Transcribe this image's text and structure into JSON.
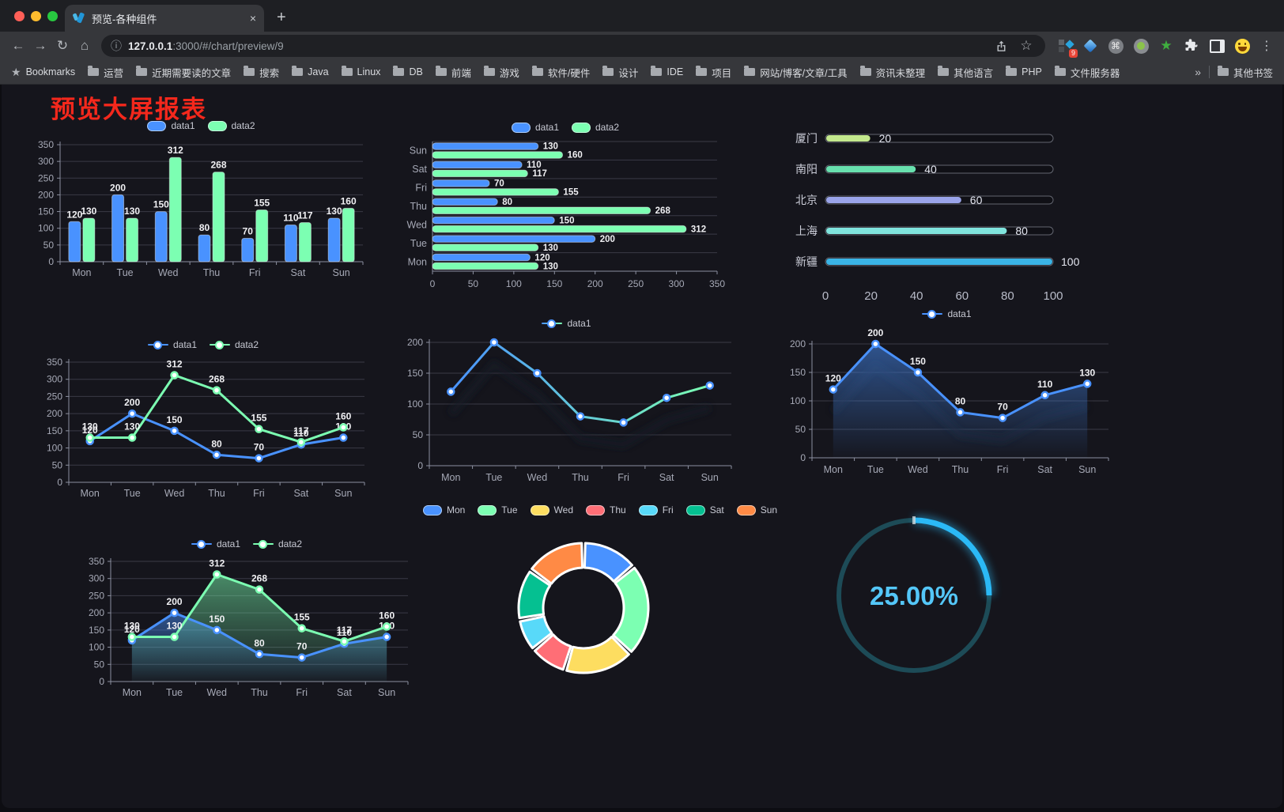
{
  "browser": {
    "tab_title": "预览-各种组件",
    "url_host": "127.0.0.1",
    "url_rest": ":3000/#/chart/preview/9",
    "bookmarks_label": "Bookmarks",
    "bookmarks": [
      "运营",
      "近期需要读的文章",
      "搜索",
      "Java",
      "Linux",
      "DB",
      "前端",
      "游戏",
      "软件/硬件",
      "设计",
      "IDE",
      "项目",
      "网站/博客/文章/工具",
      "资讯未整理",
      "其他语言",
      "PHP",
      "文件服务器"
    ],
    "overflow_glyph": "»",
    "other_bookmarks": "其他书签",
    "extension_badge": "9"
  },
  "icons": {
    "back": "←",
    "forward": "→",
    "reload": "↻",
    "home": "⌂",
    "info": "ⓘ",
    "star": "☆",
    "bookmarks_star": "★",
    "close": "×",
    "new_tab": "+",
    "cmd": "⌘",
    "green_star": "★",
    "menu": "⋮"
  },
  "page": {
    "title": "预览大屏报表",
    "title_color": "#f4281c"
  },
  "palette": {
    "blue": "#4992ff",
    "green": "#7cffb2",
    "yellow": "#fddd60",
    "red": "#ff6e76",
    "cyan": "#58d9f9",
    "teal": "#05c091",
    "orange": "#ff8a45",
    "grid": "#3a3a46",
    "axis": "#8c90a0",
    "tick_text": "#a6a9b6",
    "value_text": "#f0f0f3"
  },
  "chart_data": [
    {
      "id": "bar-grouped",
      "type": "bar",
      "categories": [
        "Mon",
        "Tue",
        "Wed",
        "Thu",
        "Fri",
        "Sat",
        "Sun"
      ],
      "series": [
        {
          "name": "data1",
          "color": "#4992ff",
          "values": [
            120,
            200,
            150,
            80,
            70,
            110,
            130
          ]
        },
        {
          "name": "data2",
          "color": "#7cffb2",
          "values": [
            130,
            130,
            312,
            268,
            155,
            117,
            160
          ]
        }
      ],
      "ylim": [
        0,
        350
      ],
      "ystep": 50,
      "legend": "pill",
      "value_labels": true
    },
    {
      "id": "hbar-grouped",
      "type": "hbar",
      "categories": [
        "Mon",
        "Tue",
        "Wed",
        "Thu",
        "Fri",
        "Sat",
        "Sun"
      ],
      "category_order": "reversed-display",
      "series": [
        {
          "name": "data1",
          "color": "#4992ff",
          "values": [
            120,
            200,
            150,
            80,
            70,
            110,
            130
          ]
        },
        {
          "name": "data2",
          "color": "#7cffb2",
          "values": [
            130,
            130,
            312,
            268,
            155,
            117,
            160
          ]
        }
      ],
      "xlim": [
        0,
        350
      ],
      "xstep": 50,
      "legend": "pill",
      "value_labels": true
    },
    {
      "id": "city-progress",
      "type": "progress",
      "items": [
        {
          "label": "厦门",
          "value": 20,
          "color": "#c3e88d"
        },
        {
          "label": "南阳",
          "value": 40,
          "color": "#68e0ae"
        },
        {
          "label": "北京",
          "value": 60,
          "color": "#9aa4ea"
        },
        {
          "label": "上海",
          "value": 80,
          "color": "#80e4dd"
        },
        {
          "label": "新疆",
          "value": 100,
          "color": "#3ab4e6"
        }
      ],
      "xlim": [
        0,
        100
      ],
      "xstep": 20
    },
    {
      "id": "line-two",
      "type": "line",
      "categories": [
        "Mon",
        "Tue",
        "Wed",
        "Thu",
        "Fri",
        "Sat",
        "Sun"
      ],
      "series": [
        {
          "name": "data1",
          "color": "#4992ff",
          "values": [
            120,
            200,
            150,
            80,
            70,
            110,
            130
          ]
        },
        {
          "name": "data2",
          "color": "#7cffb2",
          "values": [
            130,
            130,
            312,
            268,
            155,
            117,
            160
          ]
        }
      ],
      "ylim": [
        0,
        350
      ],
      "ystep": 50,
      "legend": "line",
      "value_labels": true
    },
    {
      "id": "line-gradient",
      "type": "line",
      "categories": [
        "Mon",
        "Tue",
        "Wed",
        "Thu",
        "Fri",
        "Sat",
        "Sun"
      ],
      "series": [
        {
          "name": "data1",
          "color": "#4992ff",
          "color2": "#7cffb2",
          "values": [
            120,
            200,
            150,
            80,
            70,
            110,
            130
          ]
        }
      ],
      "ylim": [
        0,
        200
      ],
      "ystep": 50,
      "legend": "line",
      "value_labels": false,
      "gradient_line": true,
      "shadow": true
    },
    {
      "id": "area-single",
      "type": "line",
      "categories": [
        "Mon",
        "Tue",
        "Wed",
        "Thu",
        "Fri",
        "Sat",
        "Sun"
      ],
      "series": [
        {
          "name": "data1",
          "color": "#4992ff",
          "values": [
            120,
            200,
            150,
            80,
            70,
            110,
            130
          ],
          "area": true
        }
      ],
      "ylim": [
        0,
        200
      ],
      "ystep": 50,
      "legend": "line",
      "value_labels": true,
      "shadow": true
    },
    {
      "id": "area-two",
      "type": "line",
      "categories": [
        "Mon",
        "Tue",
        "Wed",
        "Thu",
        "Fri",
        "Sat",
        "Sun"
      ],
      "series": [
        {
          "name": "data1",
          "color": "#4992ff",
          "values": [
            120,
            200,
            150,
            80,
            70,
            110,
            130
          ],
          "area": true
        },
        {
          "name": "data2",
          "color": "#7cffb2",
          "values": [
            130,
            130,
            312,
            268,
            155,
            117,
            160
          ],
          "area": true
        }
      ],
      "ylim": [
        0,
        350
      ],
      "ystep": 50,
      "legend": "line",
      "value_labels": true
    },
    {
      "id": "week-donut",
      "type": "pie",
      "legend": "pill",
      "items": [
        {
          "label": "Mon",
          "value": 120,
          "color": "#4992ff"
        },
        {
          "label": "Tue",
          "value": 200,
          "color": "#7cffb2"
        },
        {
          "label": "Wed",
          "value": 150,
          "color": "#fddd60"
        },
        {
          "label": "Thu",
          "value": 80,
          "color": "#ff6e76"
        },
        {
          "label": "Fri",
          "value": 70,
          "color": "#58d9f9"
        },
        {
          "label": "Sat",
          "value": 110,
          "color": "#05c091"
        },
        {
          "label": "Sun",
          "value": 130,
          "color": "#ff8a45"
        }
      ]
    },
    {
      "id": "percent-gauge",
      "type": "gauge",
      "value": 25,
      "max": 100,
      "label": "25.00%",
      "color": "#2bb9f6",
      "track_color": "#1d4b57",
      "text_color": "#54c7f9"
    }
  ]
}
